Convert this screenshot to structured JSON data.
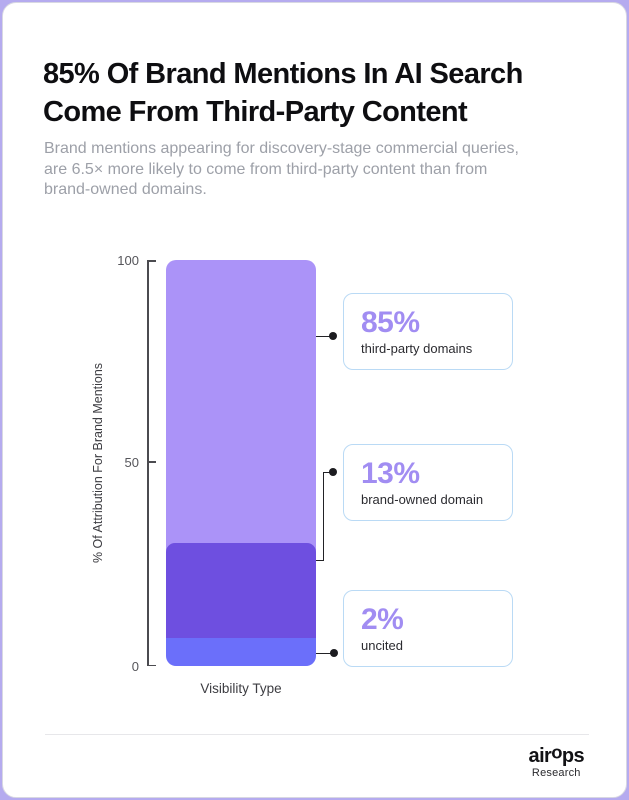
{
  "page": {
    "background_color": "#b5abef",
    "card_color": "#ffffff"
  },
  "header": {
    "title_line1": "85% Of Brand Mentions In AI Search",
    "title_line2": "Come From Third-Party Content",
    "subtitle_line1": "Brand mentions appearing for discovery-stage commercial queries,",
    "subtitle_line2": "are 6.5× more likely to come from third-party content than from",
    "subtitle_line3": "brand-owned domains."
  },
  "chart_data": {
    "type": "bar",
    "stacked": true,
    "title": "85% Of Brand Mentions In AI Search Come From Third-Party Content",
    "categories": [
      "Visibility Type"
    ],
    "series": [
      {
        "name": "third-party domains",
        "value": 85,
        "color": "#ab93f8"
      },
      {
        "name": "brand-owned domain",
        "value": 13,
        "color": "#6e4fe0"
      },
      {
        "name": "uncited",
        "value": 2,
        "color": "#6b6ffa"
      }
    ],
    "xlabel": "Visibility Type",
    "ylabel": "% Of Attribution For Brand Mentions",
    "ylim": [
      0,
      100
    ],
    "yticks": [
      "100",
      "50",
      "0"
    ],
    "grid": false,
    "legend": "none",
    "visual_segment_heights_pct": [
      69.7,
      23.4,
      6.9
    ],
    "annotations": [
      {
        "value": "85%",
        "label": "third-party domains"
      },
      {
        "value": "13%",
        "label": "brand-owned domain"
      },
      {
        "value": "2%",
        "label": "uncited"
      }
    ]
  },
  "colors": {
    "segment_third_party": "#ab93f8",
    "segment_brand_owned": "#6e4fe0",
    "segment_uncited": "#6b6ffa",
    "callout_value_text": "#a18df2",
    "callout_border": "#badaf5",
    "title_text": "#0e0e11",
    "subtitle_text": "#9da0a8",
    "connector": "#222226",
    "divider": "#e7e7ea"
  },
  "footer": {
    "brand_air": "air",
    "brand_o": "o",
    "brand_ps": "ps",
    "sub_label": "Research"
  }
}
